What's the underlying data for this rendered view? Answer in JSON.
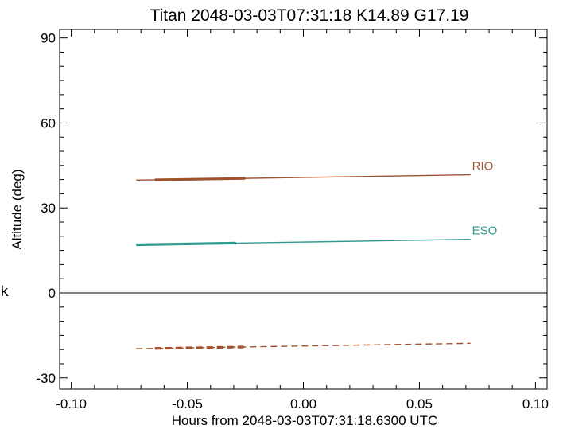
{
  "chart_data": {
    "type": "line",
    "title": "Titan 2048-03-03T07:31:18  K14.89  G17.19",
    "xlabel": "Hours from 2048-03-03T07:31:18.6300 UTC",
    "ylabel": "Altitude (deg)",
    "xlim": [
      -0.105,
      0.105
    ],
    "ylim": [
      -34,
      93
    ],
    "xticks": [
      -0.1,
      -0.05,
      0.0,
      0.05,
      0.1
    ],
    "xtick_labels": [
      "-0.10",
      "-0.05",
      "0.00",
      "0.05",
      "0.10"
    ],
    "yticks": [
      -30,
      0,
      30,
      60,
      90
    ],
    "ytick_labels": [
      "-30",
      "0",
      "30",
      "60",
      "90"
    ],
    "zero_line": 0,
    "grid": false,
    "series": [
      {
        "name": "RIO",
        "color": "#a0522d",
        "style": "solid",
        "x": [
          -0.072,
          0.072
        ],
        "y": [
          39.8,
          41.7
        ],
        "thick_x": [
          -0.064,
          -0.025
        ],
        "thick_y": [
          39.9,
          40.4
        ]
      },
      {
        "name": "ESO",
        "color": "#2e9a8e",
        "style": "solid",
        "x": [
          -0.072,
          0.072
        ],
        "y": [
          17.0,
          18.9
        ],
        "thick_x": [
          -0.072,
          -0.029
        ],
        "thick_y": [
          17.0,
          17.6
        ]
      },
      {
        "name": "",
        "color": "#a0522d",
        "style": "dashed",
        "x": [
          -0.072,
          0.072
        ],
        "y": [
          -19.7,
          -17.8
        ],
        "thick_x": [
          -0.064,
          -0.025
        ],
        "thick_y": [
          -19.6,
          -19.1
        ]
      }
    ]
  },
  "side_label": "k"
}
